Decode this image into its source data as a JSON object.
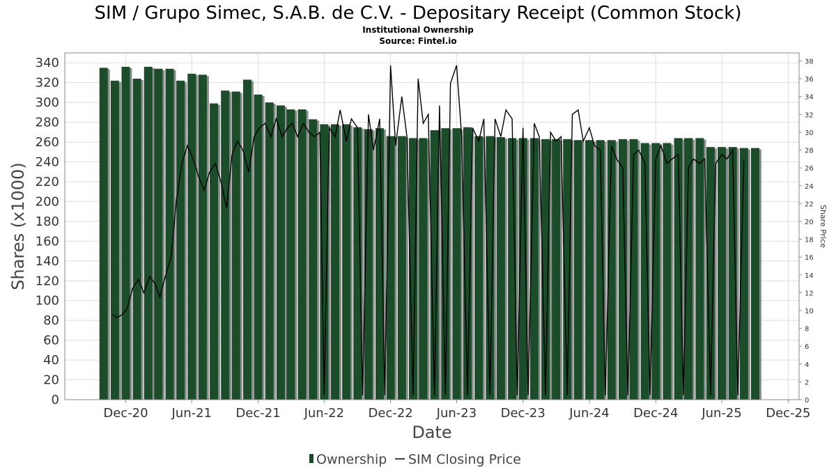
{
  "title": "SIM / Grupo Simec, S.A.B. de C.V. - Depositary Receipt (Common Stock)",
  "subtitle1": "Institutional Ownership",
  "subtitle2": "Source: Fintel.io",
  "colors": {
    "bar": "#1b4d2a",
    "bar_shadow": "#8c8c8c",
    "price_line": "#000000",
    "grid": "#dddddd",
    "axis": "#888888"
  },
  "chart_data": {
    "type": "bar",
    "xlabel": "Date",
    "ylabel": "Shares (x1000)",
    "y2label": "Share Price",
    "ylim": [
      0,
      350
    ],
    "y2lim": [
      0,
      38.9
    ],
    "yticks": [
      0,
      20,
      40,
      60,
      80,
      100,
      120,
      140,
      160,
      180,
      200,
      220,
      240,
      260,
      280,
      300,
      320,
      340
    ],
    "y2ticks": [
      0,
      2,
      4,
      6,
      8,
      10,
      12,
      14,
      16,
      18,
      20,
      22,
      24,
      26,
      28,
      30,
      32,
      34,
      36,
      38
    ],
    "x_range": [
      "2020-06-16",
      "2025-12-31"
    ],
    "x_ticks": [
      {
        "label": "Dec-20",
        "date": "2020-12-01"
      },
      {
        "label": "Jun-21",
        "date": "2021-06-01"
      },
      {
        "label": "Dec-21",
        "date": "2021-12-01"
      },
      {
        "label": "Jun-22",
        "date": "2022-06-01"
      },
      {
        "label": "Dec-22",
        "date": "2022-12-01"
      },
      {
        "label": "Jun-23",
        "date": "2023-06-01"
      },
      {
        "label": "Dec-23",
        "date": "2023-12-01"
      },
      {
        "label": "Jun-24",
        "date": "2024-06-01"
      },
      {
        "label": "Dec-24",
        "date": "2024-12-01"
      },
      {
        "label": "Jun-25",
        "date": "2025-06-01"
      },
      {
        "label": "Dec-25",
        "date": "2025-12-01"
      }
    ],
    "series": [
      {
        "name": "Ownership",
        "type": "bar",
        "dates": [
          "2020-10-01",
          "2020-11-01",
          "2020-12-01",
          "2021-01-01",
          "2021-02-01",
          "2021-03-01",
          "2021-04-01",
          "2021-05-01",
          "2021-06-01",
          "2021-07-01",
          "2021-08-01",
          "2021-09-01",
          "2021-10-01",
          "2021-11-01",
          "2021-12-01",
          "2022-01-01",
          "2022-02-01",
          "2022-03-01",
          "2022-04-01",
          "2022-05-01",
          "2022-06-01",
          "2022-07-01",
          "2022-08-01",
          "2022-09-01",
          "2022-10-01",
          "2022-11-01",
          "2022-12-01",
          "2023-01-01",
          "2023-02-01",
          "2023-03-01",
          "2023-04-01",
          "2023-05-01",
          "2023-06-01",
          "2023-07-01",
          "2023-08-01",
          "2023-09-01",
          "2023-10-01",
          "2023-11-01",
          "2023-12-01",
          "2024-01-01",
          "2024-02-01",
          "2024-03-01",
          "2024-04-01",
          "2024-05-01",
          "2024-06-01",
          "2024-07-01",
          "2024-08-01",
          "2024-09-01",
          "2024-10-01",
          "2024-11-01",
          "2024-12-01",
          "2025-01-01",
          "2025-02-01",
          "2025-03-01",
          "2025-04-01",
          "2025-05-01",
          "2025-06-01",
          "2025-07-01",
          "2025-08-01",
          "2025-09-01"
        ],
        "values": [
          335,
          322,
          336,
          324,
          336,
          334,
          334,
          322,
          329,
          328,
          299,
          312,
          311,
          323,
          308,
          300,
          297,
          293,
          293,
          283,
          278,
          278,
          278,
          275,
          273,
          274,
          266,
          266,
          264,
          264,
          272,
          274,
          274,
          275,
          266,
          266,
          265,
          264,
          264,
          264,
          263,
          263,
          263,
          262,
          262,
          262,
          262,
          263,
          263,
          259,
          259,
          259,
          264,
          264,
          264,
          255,
          255,
          255,
          254,
          254
        ]
      },
      {
        "name": "SIM Closing Price",
        "type": "line",
        "axis": "right",
        "dates": [
          "2020-10-25",
          "2020-11-05",
          "2020-11-20",
          "2020-12-05",
          "2020-12-20",
          "2021-01-05",
          "2021-01-20",
          "2021-02-05",
          "2021-02-20",
          "2021-03-05",
          "2021-03-20",
          "2021-04-05",
          "2021-04-20",
          "2021-05-05",
          "2021-05-20",
          "2021-06-05",
          "2021-06-20",
          "2021-07-05",
          "2021-07-20",
          "2021-08-05",
          "2021-08-20",
          "2021-09-05",
          "2021-09-20",
          "2021-10-05",
          "2021-10-20",
          "2021-11-05",
          "2021-11-20",
          "2021-12-05",
          "2021-12-20",
          "2022-01-05",
          "2022-01-20",
          "2022-02-05",
          "2022-02-20",
          "2022-03-05",
          "2022-03-20",
          "2022-04-05",
          "2022-04-20",
          "2022-05-05",
          "2022-05-20",
          "2022-06-01",
          "2022-06-15",
          "2022-07-01",
          "2022-07-15",
          "2022-08-01",
          "2022-08-15",
          "2022-09-01",
          "2022-09-15",
          "2022-10-01",
          "2022-10-15",
          "2022-11-01",
          "2022-11-15",
          "2022-12-01",
          "2022-12-15",
          "2023-01-01",
          "2023-01-15",
          "2023-02-01",
          "2023-02-15",
          "2023-03-01",
          "2023-03-15",
          "2023-04-01",
          "2023-04-15",
          "2023-05-01",
          "2023-05-15",
          "2023-06-01",
          "2023-06-15",
          "2023-07-01",
          "2023-07-15",
          "2023-08-01",
          "2023-08-15",
          "2023-09-01",
          "2023-09-15",
          "2023-10-01",
          "2023-10-15",
          "2023-11-01",
          "2023-11-15",
          "2023-12-01",
          "2023-12-15",
          "2024-01-01",
          "2024-01-15",
          "2024-02-01",
          "2024-02-15",
          "2024-03-01",
          "2024-03-15",
          "2024-04-01",
          "2024-04-15",
          "2024-05-01",
          "2024-05-15",
          "2024-06-01",
          "2024-06-15",
          "2024-07-01",
          "2024-07-15",
          "2024-08-01",
          "2024-08-15",
          "2024-09-01",
          "2024-09-15",
          "2024-10-01",
          "2024-10-15",
          "2024-11-01",
          "2024-11-15",
          "2024-12-01",
          "2024-12-15",
          "2025-01-01",
          "2025-01-15",
          "2025-02-01",
          "2025-02-15",
          "2025-03-01",
          "2025-03-15",
          "2025-04-01",
          "2025-04-15",
          "2025-05-01",
          "2025-05-15",
          "2025-06-01",
          "2025-06-15",
          "2025-07-01",
          "2025-07-15",
          "2025-08-01"
        ],
        "values": [
          9.6,
          9.2,
          9.5,
          10.2,
          12.5,
          13.5,
          12.0,
          13.8,
          13.0,
          11.5,
          13.8,
          16.0,
          22.5,
          26.5,
          28.5,
          27.0,
          25.0,
          23.5,
          25.5,
          26.5,
          24.5,
          21.5,
          27.5,
          29.0,
          28.0,
          25.5,
          29.5,
          30.5,
          31.0,
          29.5,
          31.5,
          29.5,
          30.5,
          31.0,
          29.5,
          31.0,
          30.0,
          29.5,
          30.0,
          0.5,
          30.5,
          29.5,
          32.5,
          29.0,
          31.5,
          30.5,
          0.5,
          32.0,
          28.0,
          31.5,
          0.5,
          37.5,
          28.5,
          34.0,
          29.5,
          0.5,
          36.0,
          31.0,
          32.0,
          0.5,
          33.0,
          0.5,
          35.5,
          37.5,
          29.5,
          0.5,
          30.5,
          29.0,
          31.5,
          0.5,
          31.5,
          29.5,
          32.5,
          31.5,
          0.5,
          30.5,
          0.5,
          31.0,
          29.5,
          0.5,
          30.0,
          29.0,
          29.5,
          0.5,
          32.0,
          32.5,
          29.0,
          30.5,
          28.5,
          28.0,
          0.5,
          28.5,
          27.0,
          26.0,
          0.5,
          27.5,
          28.0,
          26.5,
          0.5,
          27.0,
          28.5,
          26.5,
          27.0,
          27.5,
          0.5,
          26.0,
          27.0,
          26.5,
          27.0,
          0.5,
          26.5,
          27.5,
          27.0,
          28.0,
          0.5,
          27.0
        ]
      }
    ],
    "legend": [
      "Ownership",
      "SIM Closing Price"
    ],
    "legend_position": "bottom-center",
    "grid": true
  }
}
